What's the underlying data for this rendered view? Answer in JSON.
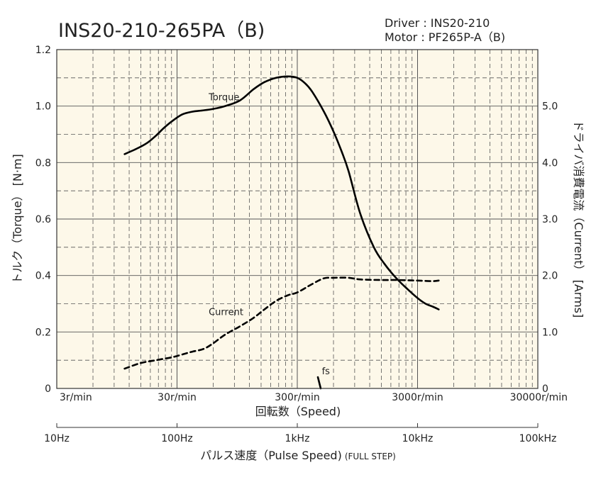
{
  "chart_data": {
    "type": "line",
    "title": "INS20-210-265PA（B)",
    "subtitle": [
      "Driver : INS20-210",
      "Motor : PF265P-A（B)"
    ],
    "xlabel": "回転数（Speed)",
    "x2label": "パルス速度（Pulse Speed)",
    "x2label_suffix": "(FULL STEP)",
    "ylabel": "トルク（Torque） [N·m]",
    "y2label": "ドライバ消費電流（Current） [Arms]",
    "x_scale": "log",
    "xlim": [
      3,
      30000
    ],
    "ylim": [
      0,
      1.2
    ],
    "y2lim": [
      0,
      6.0
    ],
    "grid": true,
    "background": "#fdf8e9",
    "line_color": "#000000",
    "x_ticks": [
      3,
      30,
      300,
      3000,
      30000
    ],
    "x_tick_labels": [
      "3r/min",
      "30r/min",
      "300r/min",
      "3000r/min",
      "30000r/min"
    ],
    "x2_ticks": [
      10,
      100,
      1000,
      10000,
      100000
    ],
    "x2_tick_labels": [
      "10Hz",
      "100Hz",
      "1kHz",
      "10kHz",
      "100kHz"
    ],
    "y_ticks": [
      0,
      0.2,
      0.4,
      0.6,
      0.8,
      1.0,
      1.2
    ],
    "y_tick_labels": [
      "0",
      "0.2",
      "0.4",
      "0.6",
      "0.8",
      "1.0",
      "1.2"
    ],
    "y2_ticks": [
      0,
      1.0,
      2.0,
      3.0,
      4.0,
      5.0
    ],
    "y2_tick_labels": [
      "0",
      "1.0",
      "2.0",
      "3.0",
      "4.0",
      "5.0"
    ],
    "annotations": [
      {
        "text": "Torque",
        "series": "torque"
      },
      {
        "text": "Current",
        "series": "current"
      },
      {
        "text": "fs",
        "series": "fs"
      }
    ],
    "series": [
      {
        "id": "torque",
        "axis": "left",
        "style": "solid",
        "x": [
          11,
          14,
          17,
          20,
          23,
          27,
          33,
          40,
          50,
          60,
          75,
          100,
          130,
          160,
          200,
          250,
          300,
          350,
          400,
          500,
          600,
          700,
          800,
          1000,
          1300,
          1600,
          2000,
          2500,
          3000,
          3500,
          4000,
          4500
        ],
        "y": [
          0.83,
          0.85,
          0.87,
          0.895,
          0.92,
          0.945,
          0.97,
          0.98,
          0.985,
          0.99,
          1.0,
          1.02,
          1.06,
          1.085,
          1.1,
          1.105,
          1.1,
          1.08,
          1.05,
          0.98,
          0.91,
          0.84,
          0.77,
          0.62,
          0.5,
          0.44,
          0.39,
          0.35,
          0.32,
          0.3,
          0.29,
          0.28
        ]
      },
      {
        "id": "current",
        "axis": "right",
        "style": "dashed",
        "x": [
          11,
          15,
          20,
          27,
          33,
          40,
          50,
          60,
          75,
          100,
          130,
          160,
          200,
          250,
          300,
          400,
          500,
          600,
          800,
          1000,
          1500,
          2000,
          3000,
          4000,
          4500
        ],
        "y": [
          0.35,
          0.45,
          0.5,
          0.55,
          0.6,
          0.65,
          0.7,
          0.8,
          0.95,
          1.1,
          1.25,
          1.4,
          1.55,
          1.65,
          1.7,
          1.85,
          1.95,
          1.96,
          1.96,
          1.93,
          1.92,
          1.92,
          1.91,
          1.9,
          1.91
        ]
      },
      {
        "id": "fs",
        "axis": "left",
        "style": "solid",
        "x": [
          445,
          470
        ],
        "y": [
          0.04,
          0
        ]
      }
    ]
  }
}
